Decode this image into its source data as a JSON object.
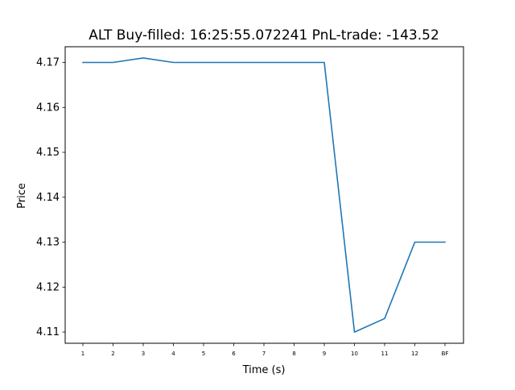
{
  "chart_data": {
    "type": "line",
    "title": "ALT  Buy-filled:  16:25:55.072241  PnL-trade:  -143.52",
    "xlabel": "Time (s)",
    "ylabel": "Price",
    "categories": [
      "1",
      "2",
      "3",
      "4",
      "5",
      "6",
      "7",
      "8",
      "9",
      "10",
      "11",
      "12",
      "BF"
    ],
    "series": [
      {
        "values": [
          4.17,
          4.17,
          4.171,
          4.17,
          4.17,
          4.17,
          4.17,
          4.17,
          4.17,
          4.11,
          4.113,
          4.13,
          4.13
        ],
        "color": "#1f77b4"
      }
    ],
    "ylim": [
      4.1075,
      4.1735
    ],
    "yticks": [
      "4.11",
      "4.12",
      "4.13",
      "4.14",
      "4.15",
      "4.16",
      "4.17"
    ],
    "grid": false,
    "legend": "none"
  }
}
